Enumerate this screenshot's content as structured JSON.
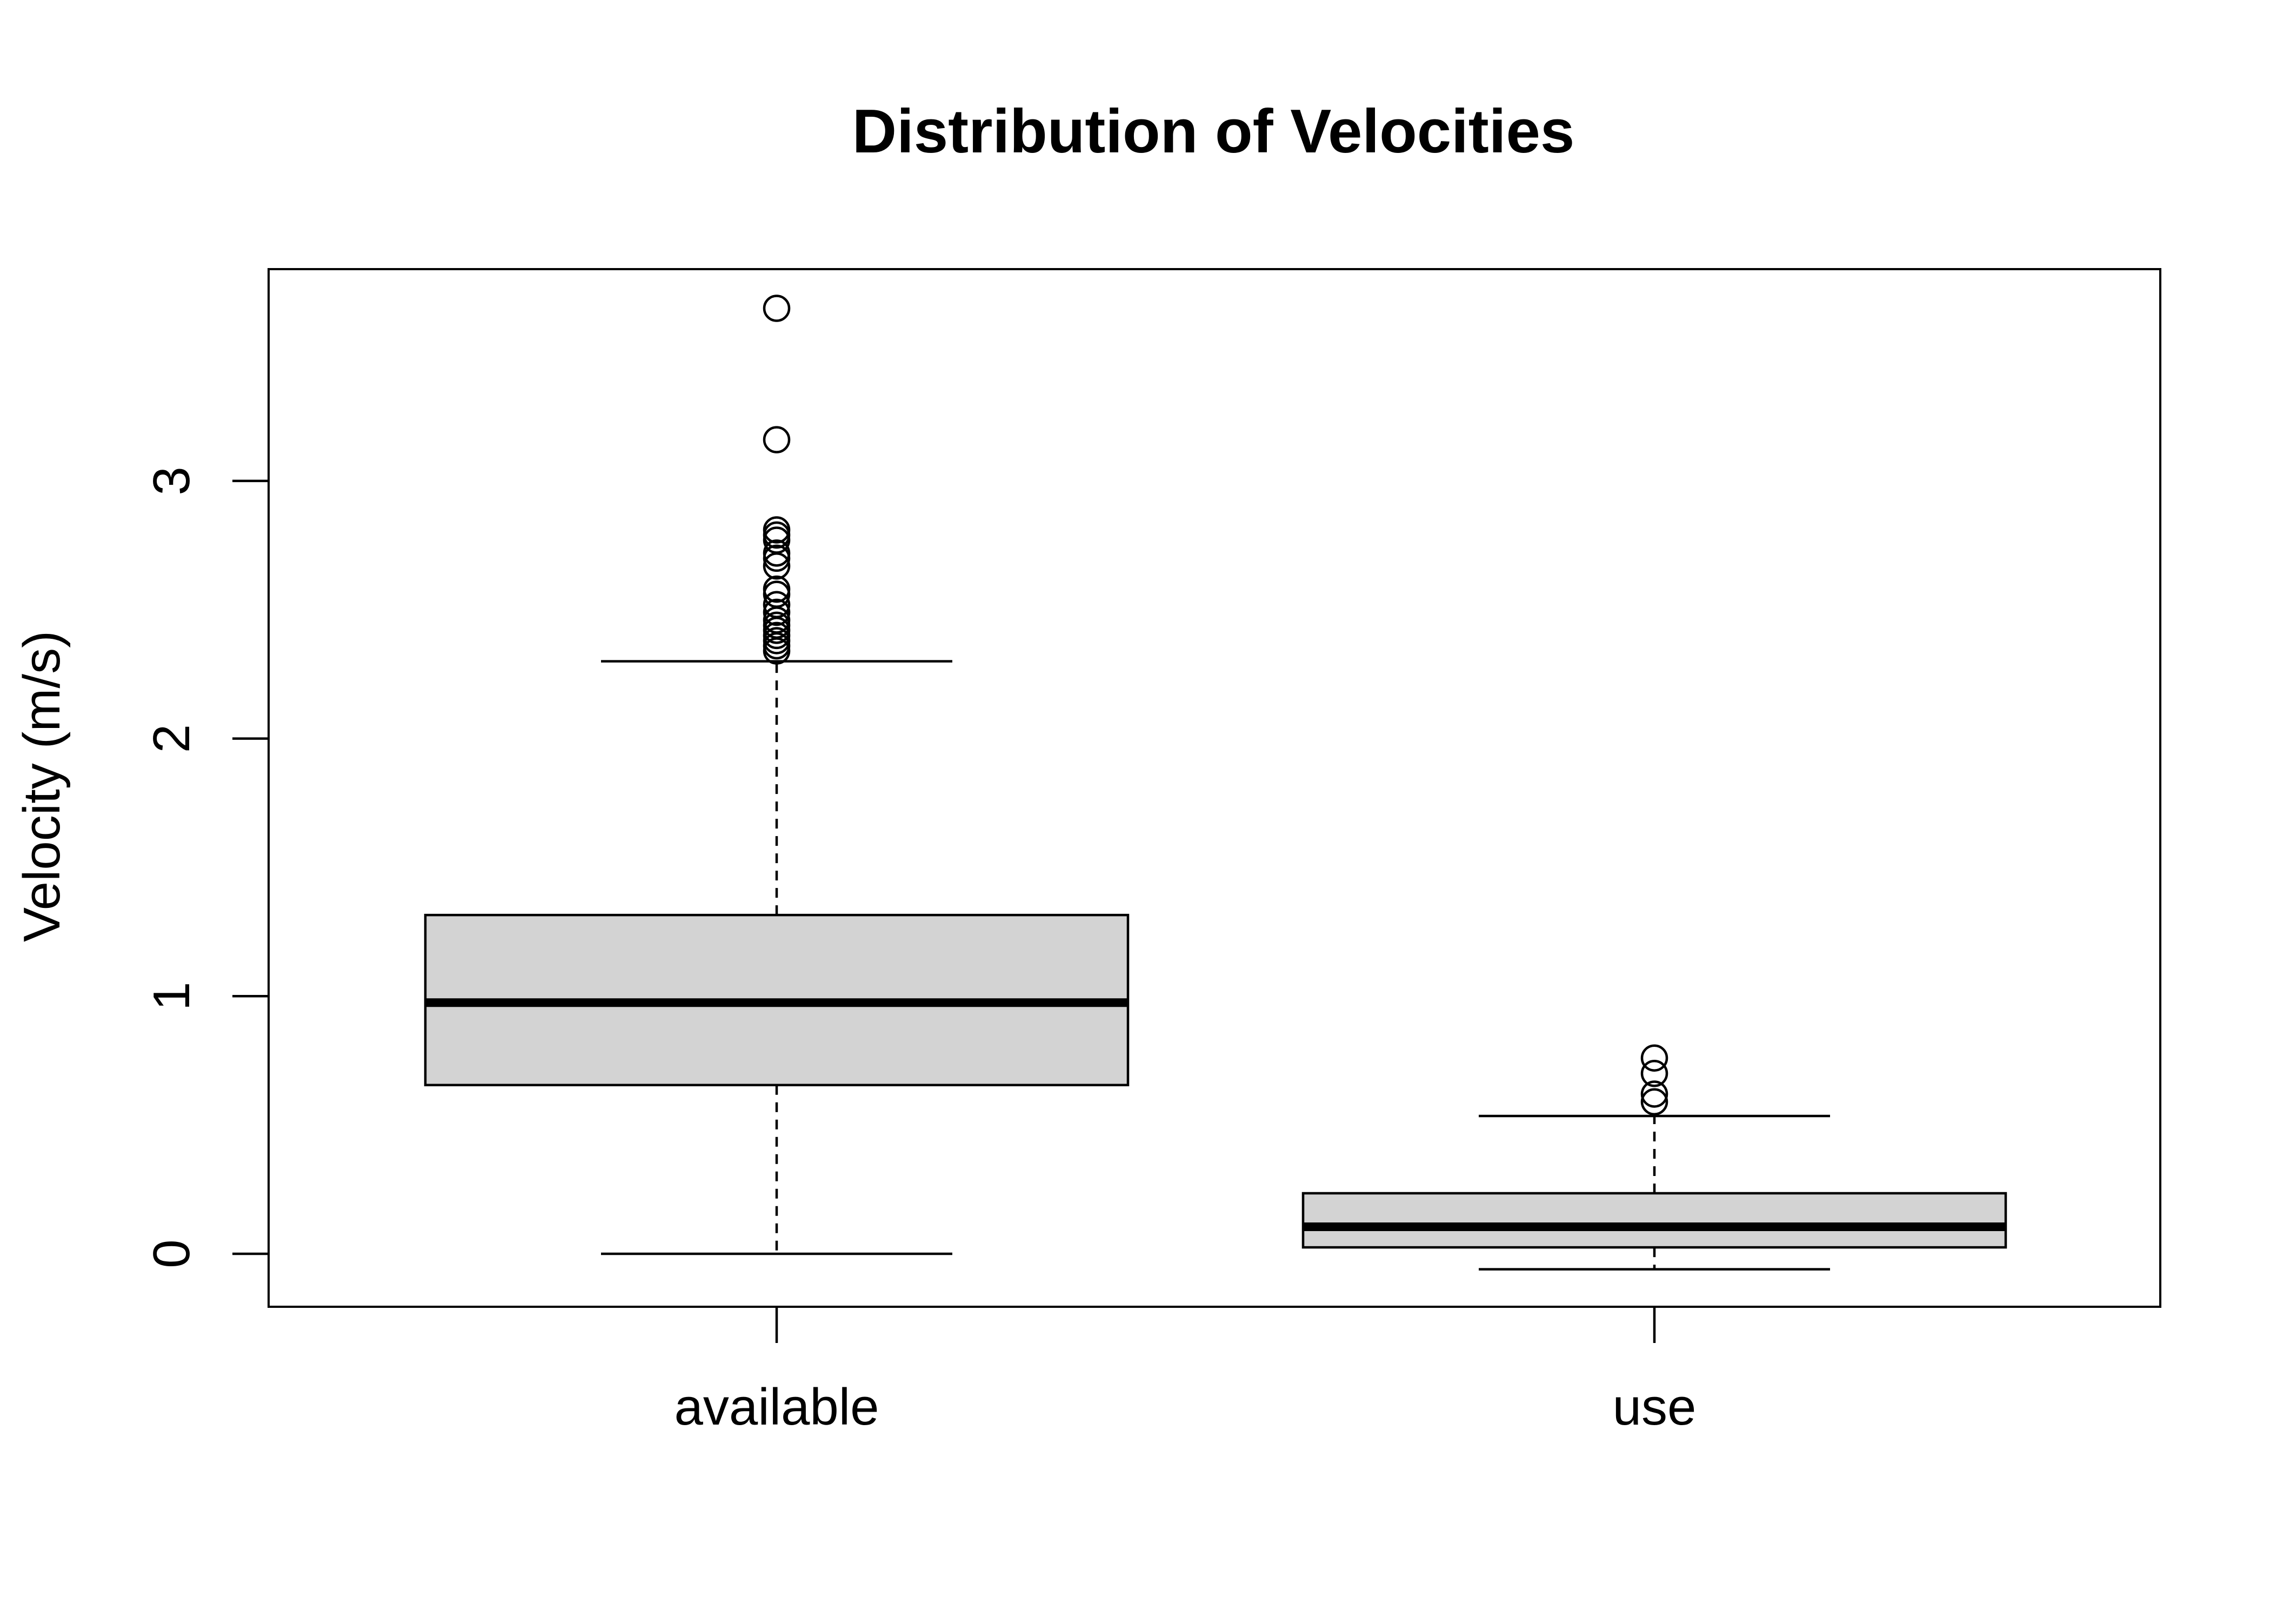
{
  "chart_data": {
    "type": "boxplot",
    "title": "Distribution of Velocities",
    "xlabel": "",
    "ylabel": "Velocity (m/s)",
    "ylim": [
      -0.2,
      3.82
    ],
    "yticks": [
      0,
      1,
      2,
      3
    ],
    "grid": false,
    "legend": "none",
    "box_fill": "#d3d3d3",
    "stroke": "#000000",
    "categories": [
      "available",
      "use"
    ],
    "boxes": [
      {
        "category": "available",
        "whisker_low": 0.0,
        "q1": 0.655,
        "median": 0.975,
        "q3": 1.315,
        "whisker_high": 2.3,
        "outliers": [
          3.67,
          3.16,
          2.81,
          2.79,
          2.77,
          2.72,
          2.7,
          2.67,
          2.58,
          2.56,
          2.52,
          2.49,
          2.46,
          2.44,
          2.42,
          2.4,
          2.38,
          2.36,
          2.34
        ]
      },
      {
        "category": "use",
        "whisker_low": -0.06,
        "q1": 0.025,
        "median": 0.105,
        "q3": 0.235,
        "whisker_high": 0.535,
        "outliers": [
          0.76,
          0.7,
          0.62,
          0.59
        ]
      }
    ]
  }
}
